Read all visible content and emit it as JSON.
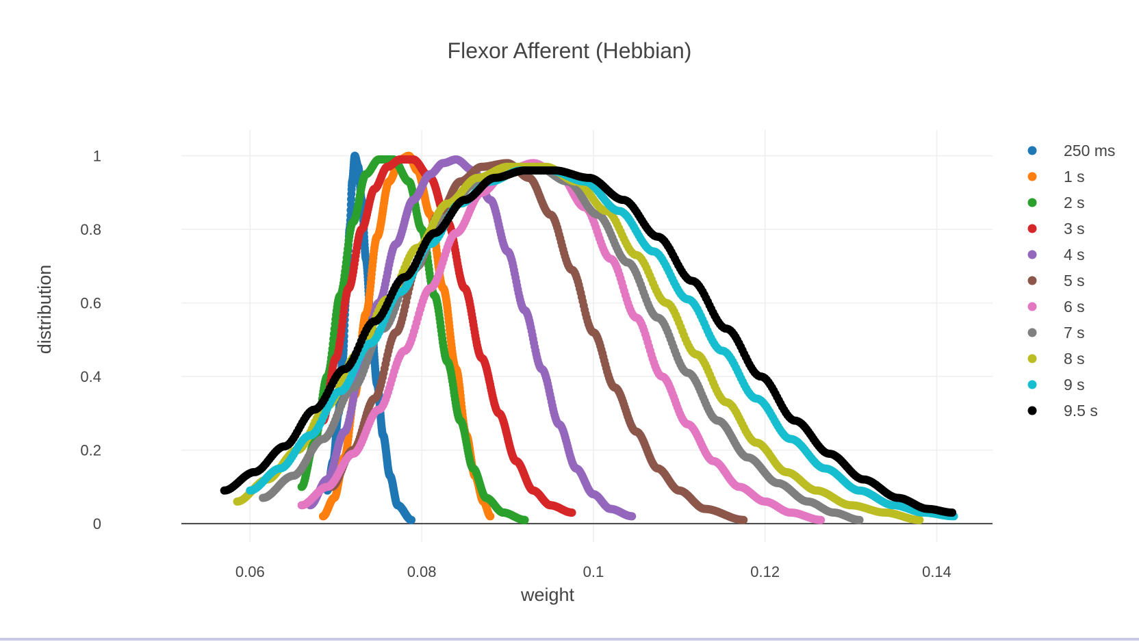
{
  "chart_data": {
    "type": "scatter",
    "title": "Flexor Afferent (Hebbian)",
    "xlabel": "weight",
    "ylabel": "distribution",
    "xlim": [
      0.052,
      0.1465
    ],
    "ylim": [
      -0.05,
      1.07
    ],
    "x_ticks": [
      0.06,
      0.08,
      0.1,
      0.12,
      0.14
    ],
    "x_tick_labels": [
      "0.06",
      "0.08",
      "0.1",
      "0.12",
      "0.14"
    ],
    "y_ticks": [
      0,
      0.2,
      0.4,
      0.6,
      0.8,
      1
    ],
    "y_tick_labels": [
      "0",
      "0.2",
      "0.4",
      "0.6",
      "0.8",
      "1"
    ],
    "grid": true,
    "legend_position": "right",
    "series": [
      {
        "name": "250 ms",
        "color": "#1f77b4",
        "peak_x": 0.0722,
        "peak_y": 1.0,
        "x_range": [
          0.069,
          0.0788
        ],
        "points": [
          [
            0.069,
            0.09
          ],
          [
            0.0697,
            0.17
          ],
          [
            0.0703,
            0.3
          ],
          [
            0.0708,
            0.45
          ],
          [
            0.0712,
            0.62
          ],
          [
            0.0716,
            0.8
          ],
          [
            0.0719,
            0.93
          ],
          [
            0.0722,
            1.0
          ],
          [
            0.0726,
            0.97
          ],
          [
            0.073,
            0.88
          ],
          [
            0.0735,
            0.72
          ],
          [
            0.0741,
            0.55
          ],
          [
            0.0748,
            0.38
          ],
          [
            0.0755,
            0.24
          ],
          [
            0.0763,
            0.13
          ],
          [
            0.0772,
            0.05
          ],
          [
            0.0788,
            0.01
          ]
        ]
      },
      {
        "name": "1 s",
        "color": "#ff7f0e",
        "peak_x": 0.0785,
        "peak_y": 1.0,
        "x_range": [
          0.0685,
          0.088
        ],
        "points": [
          [
            0.0685,
            0.02
          ],
          [
            0.0698,
            0.07
          ],
          [
            0.071,
            0.18
          ],
          [
            0.0722,
            0.35
          ],
          [
            0.0735,
            0.57
          ],
          [
            0.0748,
            0.78
          ],
          [
            0.0762,
            0.93
          ],
          [
            0.0775,
            0.99
          ],
          [
            0.0785,
            1.0
          ],
          [
            0.0795,
            0.96
          ],
          [
            0.081,
            0.84
          ],
          [
            0.0825,
            0.64
          ],
          [
            0.084,
            0.42
          ],
          [
            0.0852,
            0.24
          ],
          [
            0.0862,
            0.13
          ],
          [
            0.0872,
            0.06
          ],
          [
            0.088,
            0.02
          ]
        ]
      },
      {
        "name": "2 s",
        "color": "#2ca02c",
        "peak_x": 0.0767,
        "peak_y": 0.99,
        "x_range": [
          0.066,
          0.092
        ],
        "points": [
          [
            0.066,
            0.1
          ],
          [
            0.0675,
            0.22
          ],
          [
            0.069,
            0.4
          ],
          [
            0.0705,
            0.62
          ],
          [
            0.072,
            0.82
          ],
          [
            0.0735,
            0.95
          ],
          [
            0.075,
            0.99
          ],
          [
            0.0767,
            0.99
          ],
          [
            0.0785,
            0.93
          ],
          [
            0.08,
            0.8
          ],
          [
            0.0815,
            0.62
          ],
          [
            0.083,
            0.44
          ],
          [
            0.0845,
            0.28
          ],
          [
            0.086,
            0.15
          ],
          [
            0.0875,
            0.07
          ],
          [
            0.0895,
            0.03
          ],
          [
            0.092,
            0.01
          ]
        ]
      },
      {
        "name": "3 s",
        "color": "#d62728",
        "peak_x": 0.079,
        "peak_y": 0.99,
        "x_range": [
          0.0685,
          0.0975
        ],
        "points": [
          [
            0.0685,
            0.28
          ],
          [
            0.07,
            0.45
          ],
          [
            0.0715,
            0.64
          ],
          [
            0.073,
            0.8
          ],
          [
            0.0745,
            0.91
          ],
          [
            0.076,
            0.97
          ],
          [
            0.0775,
            0.99
          ],
          [
            0.079,
            0.99
          ],
          [
            0.081,
            0.94
          ],
          [
            0.083,
            0.82
          ],
          [
            0.085,
            0.64
          ],
          [
            0.087,
            0.45
          ],
          [
            0.089,
            0.3
          ],
          [
            0.091,
            0.17
          ],
          [
            0.093,
            0.09
          ],
          [
            0.095,
            0.05
          ],
          [
            0.0975,
            0.03
          ]
        ]
      },
      {
        "name": "4 s",
        "color": "#9467bd",
        "peak_x": 0.084,
        "peak_y": 0.99,
        "x_range": [
          0.067,
          0.1045
        ],
        "points": [
          [
            0.067,
            0.05
          ],
          [
            0.069,
            0.12
          ],
          [
            0.071,
            0.25
          ],
          [
            0.073,
            0.42
          ],
          [
            0.075,
            0.6
          ],
          [
            0.077,
            0.76
          ],
          [
            0.079,
            0.88
          ],
          [
            0.081,
            0.95
          ],
          [
            0.0825,
            0.98
          ],
          [
            0.084,
            0.99
          ],
          [
            0.086,
            0.96
          ],
          [
            0.088,
            0.88
          ],
          [
            0.09,
            0.74
          ],
          [
            0.092,
            0.58
          ],
          [
            0.094,
            0.42
          ],
          [
            0.096,
            0.27
          ],
          [
            0.098,
            0.15
          ],
          [
            0.1,
            0.08
          ],
          [
            0.102,
            0.04
          ],
          [
            0.1045,
            0.02
          ]
        ]
      },
      {
        "name": "5 s",
        "color": "#8c564b",
        "peak_x": 0.09,
        "peak_y": 0.98,
        "x_range": [
          0.0695,
          0.1175
        ],
        "points": [
          [
            0.0695,
            0.1
          ],
          [
            0.072,
            0.2
          ],
          [
            0.0745,
            0.34
          ],
          [
            0.077,
            0.52
          ],
          [
            0.0795,
            0.7
          ],
          [
            0.082,
            0.84
          ],
          [
            0.0845,
            0.93
          ],
          [
            0.087,
            0.97
          ],
          [
            0.09,
            0.98
          ],
          [
            0.0925,
            0.94
          ],
          [
            0.095,
            0.84
          ],
          [
            0.0975,
            0.69
          ],
          [
            0.1,
            0.52
          ],
          [
            0.1025,
            0.37
          ],
          [
            0.105,
            0.25
          ],
          [
            0.1075,
            0.15
          ],
          [
            0.11,
            0.09
          ],
          [
            0.113,
            0.04
          ],
          [
            0.1175,
            0.01
          ]
        ]
      },
      {
        "name": "6 s",
        "color": "#e377c2",
        "peak_x": 0.093,
        "peak_y": 0.98,
        "x_range": [
          0.066,
          0.1265
        ],
        "points": [
          [
            0.066,
            0.05
          ],
          [
            0.069,
            0.1
          ],
          [
            0.072,
            0.19
          ],
          [
            0.075,
            0.31
          ],
          [
            0.078,
            0.47
          ],
          [
            0.081,
            0.64
          ],
          [
            0.084,
            0.79
          ],
          [
            0.087,
            0.9
          ],
          [
            0.09,
            0.96
          ],
          [
            0.093,
            0.98
          ],
          [
            0.096,
            0.95
          ],
          [
            0.099,
            0.86
          ],
          [
            0.102,
            0.72
          ],
          [
            0.105,
            0.56
          ],
          [
            0.108,
            0.4
          ],
          [
            0.111,
            0.27
          ],
          [
            0.114,
            0.17
          ],
          [
            0.117,
            0.1
          ],
          [
            0.12,
            0.06
          ],
          [
            0.123,
            0.03
          ],
          [
            0.1265,
            0.01
          ]
        ]
      },
      {
        "name": "7 s",
        "color": "#7f7f7f",
        "peak_x": 0.0935,
        "peak_y": 0.97,
        "x_range": [
          0.0615,
          0.131
        ],
        "points": [
          [
            0.0615,
            0.07
          ],
          [
            0.065,
            0.13
          ],
          [
            0.0685,
            0.23
          ],
          [
            0.072,
            0.37
          ],
          [
            0.0755,
            0.53
          ],
          [
            0.079,
            0.69
          ],
          [
            0.0825,
            0.83
          ],
          [
            0.086,
            0.92
          ],
          [
            0.0895,
            0.96
          ],
          [
            0.0935,
            0.97
          ],
          [
            0.097,
            0.93
          ],
          [
            0.1005,
            0.84
          ],
          [
            0.104,
            0.71
          ],
          [
            0.1075,
            0.56
          ],
          [
            0.111,
            0.41
          ],
          [
            0.1145,
            0.28
          ],
          [
            0.118,
            0.18
          ],
          [
            0.1215,
            0.11
          ],
          [
            0.125,
            0.06
          ],
          [
            0.128,
            0.03
          ],
          [
            0.131,
            0.01
          ]
        ]
      },
      {
        "name": "8 s",
        "color": "#bcbd22",
        "peak_x": 0.0945,
        "peak_y": 0.97,
        "x_range": [
          0.0585,
          0.138
        ],
        "points": [
          [
            0.0585,
            0.06
          ],
          [
            0.062,
            0.12
          ],
          [
            0.0655,
            0.2
          ],
          [
            0.069,
            0.32
          ],
          [
            0.0725,
            0.46
          ],
          [
            0.076,
            0.61
          ],
          [
            0.0795,
            0.75
          ],
          [
            0.083,
            0.87
          ],
          [
            0.0865,
            0.94
          ],
          [
            0.09,
            0.97
          ],
          [
            0.0945,
            0.97
          ],
          [
            0.098,
            0.93
          ],
          [
            0.1015,
            0.85
          ],
          [
            0.105,
            0.73
          ],
          [
            0.1085,
            0.6
          ],
          [
            0.112,
            0.46
          ],
          [
            0.1155,
            0.33
          ],
          [
            0.119,
            0.22
          ],
          [
            0.1225,
            0.14
          ],
          [
            0.126,
            0.09
          ],
          [
            0.13,
            0.05
          ],
          [
            0.134,
            0.03
          ],
          [
            0.138,
            0.01
          ]
        ]
      },
      {
        "name": "9 s",
        "color": "#17becf",
        "peak_x": 0.095,
        "peak_y": 0.96,
        "x_range": [
          0.06,
          0.142
        ],
        "points": [
          [
            0.06,
            0.09
          ],
          [
            0.0635,
            0.15
          ],
          [
            0.067,
            0.24
          ],
          [
            0.0705,
            0.36
          ],
          [
            0.074,
            0.49
          ],
          [
            0.0775,
            0.63
          ],
          [
            0.081,
            0.76
          ],
          [
            0.0845,
            0.87
          ],
          [
            0.088,
            0.93
          ],
          [
            0.0915,
            0.96
          ],
          [
            0.095,
            0.96
          ],
          [
            0.099,
            0.93
          ],
          [
            0.103,
            0.85
          ],
          [
            0.107,
            0.74
          ],
          [
            0.111,
            0.61
          ],
          [
            0.115,
            0.47
          ],
          [
            0.119,
            0.34
          ],
          [
            0.123,
            0.23
          ],
          [
            0.127,
            0.15
          ],
          [
            0.131,
            0.09
          ],
          [
            0.135,
            0.05
          ],
          [
            0.1385,
            0.03
          ],
          [
            0.142,
            0.02
          ]
        ]
      },
      {
        "name": "9.5 s",
        "color": "#000000",
        "peak_x": 0.0955,
        "peak_y": 0.96,
        "x_range": [
          0.057,
          0.1418
        ],
        "points": [
          [
            0.057,
            0.09
          ],
          [
            0.0605,
            0.14
          ],
          [
            0.064,
            0.21
          ],
          [
            0.0675,
            0.31
          ],
          [
            0.071,
            0.42
          ],
          [
            0.0745,
            0.55
          ],
          [
            0.078,
            0.67
          ],
          [
            0.0815,
            0.79
          ],
          [
            0.085,
            0.88
          ],
          [
            0.0885,
            0.94
          ],
          [
            0.092,
            0.96
          ],
          [
            0.0955,
            0.96
          ],
          [
            0.0995,
            0.94
          ],
          [
            0.1035,
            0.88
          ],
          [
            0.1075,
            0.78
          ],
          [
            0.1115,
            0.66
          ],
          [
            0.1155,
            0.53
          ],
          [
            0.1195,
            0.4
          ],
          [
            0.1235,
            0.28
          ],
          [
            0.1275,
            0.19
          ],
          [
            0.1315,
            0.12
          ],
          [
            0.1355,
            0.07
          ],
          [
            0.139,
            0.04
          ],
          [
            0.1418,
            0.03
          ]
        ]
      }
    ]
  }
}
